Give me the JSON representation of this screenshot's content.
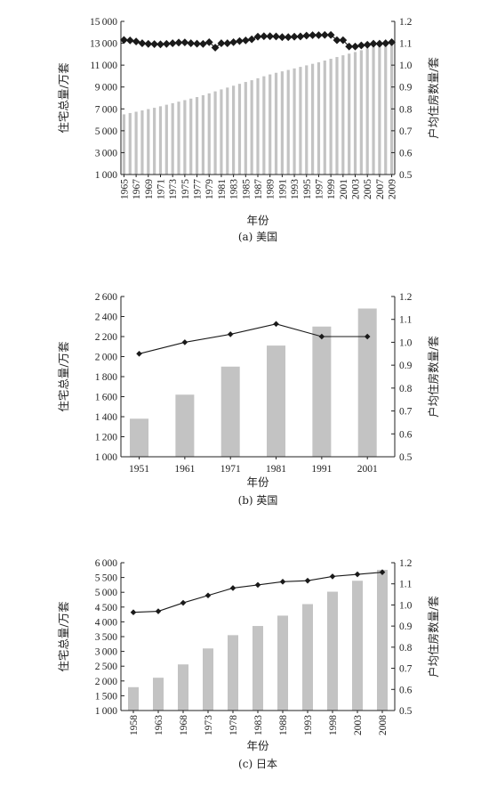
{
  "chart_data": [
    {
      "type": "bar",
      "caption": "(a) 美国",
      "xlabel": "年份",
      "ylabel": "住宅总量/万套",
      "y2label": "户均住房数量/套",
      "ylim": [
        1000,
        15000
      ],
      "yticks": [
        1000,
        3000,
        5000,
        7000,
        9000,
        11000,
        13000,
        15000
      ],
      "y2lim": [
        0.5,
        1.2
      ],
      "y2ticks": [
        0.5,
        0.6,
        0.7,
        0.8,
        0.9,
        1.0,
        1.1,
        1.2
      ],
      "xticks": [
        "1965",
        "1967",
        "1969",
        "1971",
        "1973",
        "1975",
        "1977",
        "1979",
        "1981",
        "1983",
        "1985",
        "1987",
        "1989",
        "1991",
        "1993",
        "1995",
        "1997",
        "1999",
        "2001",
        "2003",
        "2005",
        "2007",
        "2009"
      ],
      "x": [
        1965,
        1966,
        1967,
        1968,
        1969,
        1970,
        1971,
        1972,
        1973,
        1974,
        1975,
        1976,
        1977,
        1978,
        1979,
        1980,
        1981,
        1982,
        1983,
        1984,
        1985,
        1986,
        1987,
        1988,
        1989,
        1990,
        1991,
        1992,
        1993,
        1994,
        1995,
        1996,
        1997,
        1998,
        1999,
        2000,
        2001,
        2002,
        2003,
        2004,
        2005,
        2006,
        2007,
        2008,
        2009
      ],
      "series": [
        {
          "kind": "bar",
          "values": [
            6500,
            6620,
            6740,
            6860,
            6980,
            7100,
            7240,
            7380,
            7520,
            7660,
            7800,
            7940,
            8080,
            8250,
            8420,
            8600,
            8780,
            8950,
            9120,
            9290,
            9460,
            9620,
            9800,
            9980,
            10150,
            10300,
            10430,
            10560,
            10700,
            10840,
            10980,
            11120,
            11260,
            11420,
            11580,
            11740,
            11900,
            12050,
            12200,
            12360,
            12520,
            12680,
            12840,
            12990,
            13140
          ]
        },
        {
          "kind": "line",
          "values": [
            1.115,
            1.113,
            1.108,
            1.1,
            1.097,
            1.096,
            1.095,
            1.097,
            1.1,
            1.103,
            1.104,
            1.1,
            1.098,
            1.097,
            1.105,
            1.08,
            1.1,
            1.1,
            1.105,
            1.11,
            1.113,
            1.118,
            1.13,
            1.132,
            1.132,
            1.131,
            1.128,
            1.128,
            1.13,
            1.131,
            1.135,
            1.137,
            1.137,
            1.138,
            1.138,
            1.114,
            1.114,
            1.085,
            1.085,
            1.09,
            1.093,
            1.098,
            1.098,
            1.1,
            1.105
          ]
        }
      ]
    },
    {
      "type": "bar",
      "caption": "(b) 英国",
      "xlabel": "年份",
      "ylabel": "住宅总量/万套",
      "y2label": "户均住房数量/套",
      "ylim": [
        1000,
        2600
      ],
      "yticks": [
        1000,
        1200,
        1400,
        1600,
        1800,
        2000,
        2200,
        2400,
        2600
      ],
      "y2lim": [
        0.5,
        1.2
      ],
      "y2ticks": [
        0.5,
        0.6,
        0.7,
        0.8,
        0.9,
        1.0,
        1.1,
        1.2
      ],
      "categories": [
        "1951",
        "1961",
        "1971",
        "1981",
        "1991",
        "2001"
      ],
      "series": [
        {
          "kind": "bar",
          "values": [
            1380,
            1620,
            1900,
            2110,
            2300,
            2480
          ]
        },
        {
          "kind": "line",
          "values": [
            0.95,
            1.0,
            1.035,
            1.08,
            1.025,
            1.025
          ]
        }
      ]
    },
    {
      "type": "bar",
      "caption": "(c) 日本",
      "xlabel": "年份",
      "ylabel": "住宅总量/万套",
      "y2label": "户均住房数量/套",
      "ylim": [
        1000,
        6000
      ],
      "yticks": [
        1000,
        1500,
        2000,
        2500,
        3000,
        3500,
        4000,
        4500,
        5000,
        5500,
        6000
      ],
      "y2lim": [
        0.5,
        1.2
      ],
      "y2ticks": [
        0.5,
        0.6,
        0.7,
        0.8,
        0.9,
        1.0,
        1.1,
        1.2
      ],
      "categories": [
        "1958",
        "1963",
        "1968",
        "1973",
        "1978",
        "1983",
        "1988",
        "1993",
        "1998",
        "2003",
        "2008"
      ],
      "series": [
        {
          "kind": "bar",
          "values": [
            1790,
            2110,
            2560,
            3100,
            3550,
            3860,
            4210,
            4600,
            5020,
            5390,
            5760
          ]
        },
        {
          "kind": "line",
          "values": [
            0.965,
            0.97,
            1.01,
            1.045,
            1.08,
            1.095,
            1.11,
            1.115,
            1.135,
            1.145,
            1.155
          ]
        }
      ]
    }
  ],
  "colors": {
    "bar": "#c3c3c3",
    "line": "#1a1a1a",
    "axis": "#222222"
  }
}
